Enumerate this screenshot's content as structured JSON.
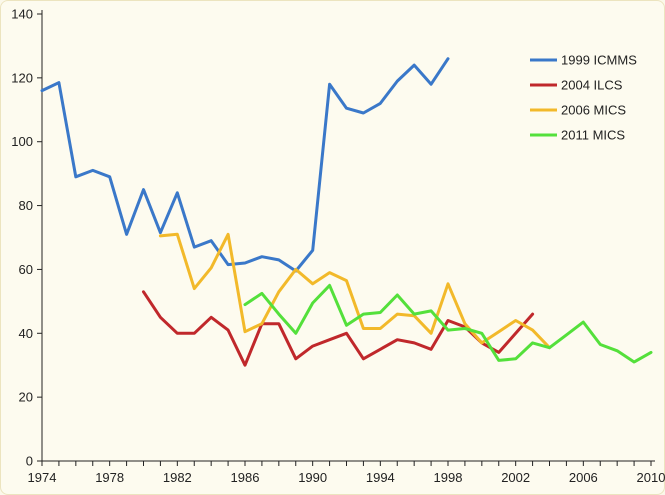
{
  "chart_data": {
    "type": "line",
    "title": "",
    "xlabel": "",
    "ylabel": "",
    "xlim": [
      1974,
      2010
    ],
    "ylim": [
      0,
      140
    ],
    "x_ticks": [
      "1974",
      "1978",
      "1982",
      "1986",
      "1990",
      "1994",
      "1998",
      "2002",
      "2006",
      "2010"
    ],
    "y_ticks": [
      "0",
      "20",
      "40",
      "60",
      "80",
      "100",
      "120",
      "140"
    ],
    "grid": false,
    "legend_position": "right",
    "series": [
      {
        "name": "1999 ICMMS",
        "color": "#3a78c9",
        "points": [
          [
            1974,
            116
          ],
          [
            1975,
            118.5
          ],
          [
            1976,
            89
          ],
          [
            1977,
            91
          ],
          [
            1978,
            89
          ],
          [
            1979,
            71
          ],
          [
            1980,
            85
          ],
          [
            1981,
            71.5
          ],
          [
            1982,
            84
          ],
          [
            1983,
            67
          ],
          [
            1984,
            69
          ],
          [
            1985,
            61.5
          ],
          [
            1986,
            62
          ],
          [
            1987,
            64
          ],
          [
            1988,
            63
          ],
          [
            1989,
            59.5
          ],
          [
            1990,
            66
          ],
          [
            1991,
            118
          ],
          [
            1992,
            110.5
          ],
          [
            1993,
            109
          ],
          [
            1994,
            112
          ],
          [
            1995,
            119
          ],
          [
            1996,
            124
          ],
          [
            1997,
            118
          ],
          [
            1998,
            126
          ]
        ]
      },
      {
        "name": "2004 ILCS",
        "color": "#c0282b",
        "points": [
          [
            1980,
            53
          ],
          [
            1981,
            45
          ],
          [
            1982,
            40
          ],
          [
            1983,
            40
          ],
          [
            1984,
            45
          ],
          [
            1985,
            41
          ],
          [
            1986,
            30
          ],
          [
            1987,
            43
          ],
          [
            1988,
            43
          ],
          [
            1989,
            32
          ],
          [
            1990,
            36
          ],
          [
            1991,
            38
          ],
          [
            1992,
            40
          ],
          [
            1993,
            32
          ],
          [
            1994,
            35
          ],
          [
            1995,
            38
          ],
          [
            1996,
            37
          ],
          [
            1997,
            35
          ],
          [
            1998,
            44
          ],
          [
            1999,
            42
          ],
          [
            2000,
            37
          ],
          [
            2001,
            34
          ],
          [
            2002,
            40
          ],
          [
            2003,
            46
          ]
        ]
      },
      {
        "name": "2006 MICS",
        "color": "#f2b92a",
        "points": [
          [
            1981,
            70.5
          ],
          [
            1982,
            71
          ],
          [
            1983,
            54
          ],
          [
            1984,
            60.5
          ],
          [
            1985,
            71
          ],
          [
            1986,
            40.5
          ],
          [
            1987,
            43
          ],
          [
            1988,
            53
          ],
          [
            1989,
            60
          ],
          [
            1990,
            55.5
          ],
          [
            1991,
            59
          ],
          [
            1992,
            56.5
          ],
          [
            1993,
            41.5
          ],
          [
            1994,
            41.5
          ],
          [
            1995,
            46
          ],
          [
            1996,
            45.5
          ],
          [
            1997,
            40
          ],
          [
            1998,
            55.5
          ],
          [
            1999,
            43
          ],
          [
            2000,
            37
          ],
          [
            2001,
            40.5
          ],
          [
            2002,
            44
          ],
          [
            2003,
            41
          ],
          [
            2004,
            35.5
          ]
        ]
      },
      {
        "name": "2011 MICS",
        "color": "#54e03b",
        "points": [
          [
            1986,
            49
          ],
          [
            1987,
            52.5
          ],
          [
            1988,
            46
          ],
          [
            1989,
            40
          ],
          [
            1990,
            49.5
          ],
          [
            1991,
            55
          ],
          [
            1992,
            42.5
          ],
          [
            1993,
            46
          ],
          [
            1994,
            46.5
          ],
          [
            1995,
            52
          ],
          [
            1996,
            46
          ],
          [
            1997,
            47
          ],
          [
            1998,
            41
          ],
          [
            1999,
            41.5
          ],
          [
            2000,
            40
          ],
          [
            2001,
            31.5
          ],
          [
            2002,
            32
          ],
          [
            2003,
            37
          ],
          [
            2004,
            35.5
          ],
          [
            2005,
            39.5
          ],
          [
            2006,
            43.5
          ],
          [
            2007,
            36.5
          ],
          [
            2008,
            34.5
          ],
          [
            2009,
            31
          ],
          [
            2010,
            34
          ]
        ]
      }
    ]
  }
}
